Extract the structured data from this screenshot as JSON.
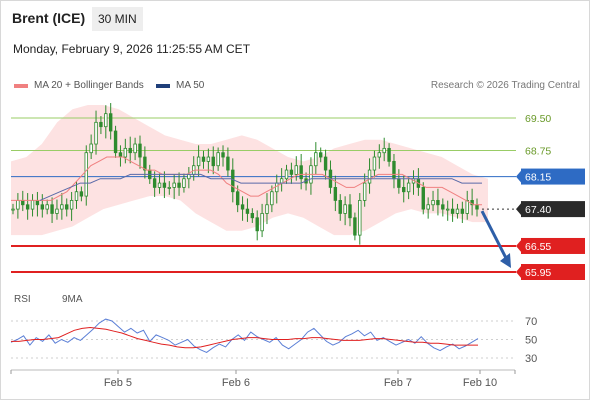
{
  "header": {
    "instrument": "Brent (ICE)",
    "timeframe": "30 MIN",
    "timestamp": "Monday, February 9, 2026 11:25:55 AM CET"
  },
  "legend": {
    "ma20_label": "MA 20 + Bollinger Bands",
    "ma50_label": "MA 50",
    "credit": "Research © 2026 Trading Central"
  },
  "rsi_legend": {
    "rsi_label": "RSI",
    "ma9_label": "9MA"
  },
  "colors": {
    "ma20": "#f08080",
    "bollinger_fill": "#fde2e2",
    "ma50": "#5a6aa8",
    "resistance": "#99cc66",
    "pivot": "#2e6bc4",
    "support": "#e02020",
    "candle": "#2e8b2e",
    "arrow": "#2e5fa8",
    "rsi": "#5b7fd6",
    "rsi_ma": "#e02020"
  },
  "chart_data": [
    {
      "type": "candlestick",
      "title": "Brent (ICE)",
      "timeframe": "30 MIN",
      "ylim": [
        65.5,
        70.0
      ],
      "x_tick_labels": [
        "Feb 5",
        "Feb 6",
        "Feb 7",
        "Feb 10"
      ],
      "levels": [
        {
          "value": 69.5,
          "label": "69.50",
          "kind": "resistance"
        },
        {
          "value": 68.75,
          "label": "68.75",
          "kind": "resistance"
        },
        {
          "value": 68.15,
          "label": "68.15",
          "kind": "pivot"
        },
        {
          "value": 67.4,
          "label": "67.40",
          "kind": "last"
        },
        {
          "value": 66.55,
          "label": "66.55",
          "kind": "support"
        },
        {
          "value": 65.95,
          "label": "65.95",
          "kind": "support"
        }
      ],
      "close_series": [
        67.4,
        67.6,
        67.5,
        67.4,
        67.6,
        67.5,
        67.4,
        67.5,
        67.3,
        67.4,
        67.5,
        67.4,
        67.6,
        67.8,
        67.7,
        68.7,
        68.9,
        69.4,
        69.3,
        69.6,
        69.2,
        68.7,
        68.6,
        68.8,
        68.7,
        68.9,
        68.6,
        68.3,
        68.1,
        67.9,
        68.0,
        67.9,
        67.9,
        68.0,
        67.9,
        68.1,
        68.2,
        68.4,
        68.6,
        68.5,
        68.6,
        68.4,
        68.7,
        68.6,
        68.3,
        67.8,
        67.5,
        67.4,
        67.3,
        67.2,
        66.9,
        67.3,
        67.5,
        67.8,
        68.0,
        68.1,
        68.3,
        68.2,
        68.4,
        68.1,
        68.0,
        68.4,
        68.7,
        68.6,
        68.3,
        67.9,
        67.6,
        67.3,
        67.5,
        67.2,
        66.8,
        67.6,
        68.0,
        68.3,
        68.6,
        68.7,
        68.8,
        68.5,
        68.1,
        67.9,
        67.8,
        68.0,
        68.1,
        67.9,
        67.4,
        67.5,
        67.6,
        67.5,
        67.4,
        67.4,
        67.3,
        67.4,
        67.3,
        67.6,
        67.5,
        67.4
      ],
      "ma20_series": [
        67.6,
        67.6,
        67.6,
        67.6,
        67.6,
        67.6,
        67.7,
        67.8,
        68.0,
        68.2,
        68.4,
        68.5,
        68.6,
        68.6,
        68.6,
        68.5,
        68.4,
        68.3,
        68.3,
        68.2,
        68.2,
        68.2,
        68.2,
        68.3,
        68.3,
        68.3,
        68.2,
        68.0,
        67.9,
        67.8,
        67.7,
        67.7,
        67.8,
        67.9,
        68.0,
        68.1,
        68.2,
        68.2,
        68.2,
        68.2,
        68.1,
        68.0,
        67.9,
        67.9,
        68.0,
        68.1,
        68.2,
        68.2,
        68.2,
        68.2,
        68.1,
        68.0,
        67.9,
        67.9,
        67.9,
        67.8,
        67.7,
        67.6,
        67.5,
        67.5
      ],
      "ma50_series": [
        67.6,
        67.7,
        67.8,
        67.9,
        68.0,
        68.0,
        68.1,
        68.1,
        68.1,
        68.2,
        68.2,
        68.2,
        68.2,
        68.2,
        68.2,
        68.2,
        68.2,
        68.1,
        68.1,
        68.1,
        68.0,
        68.0,
        68.0,
        68.0,
        68.0,
        68.0,
        68.0,
        68.1,
        68.1,
        68.1,
        68.1,
        68.1,
        68.1,
        68.1,
        68.1,
        68.1,
        68.1,
        68.1,
        68.1,
        68.1,
        68.1,
        68.1,
        68.0,
        68.0,
        68.0
      ],
      "bb_upper": [
        68.5,
        68.6,
        68.9,
        69.4,
        69.7,
        69.8,
        69.8,
        69.7,
        69.5,
        69.3,
        69.1,
        69.0,
        68.9,
        68.9,
        69.0,
        69.1,
        69.0,
        68.8,
        68.6,
        68.5,
        68.6,
        68.8,
        68.9,
        69.0,
        69.0,
        68.9,
        68.8,
        68.7,
        68.6,
        68.4,
        68.2,
        68.1
      ],
      "bb_lower": [
        66.8,
        66.8,
        66.8,
        66.9,
        67.0,
        67.2,
        67.4,
        67.5,
        67.6,
        67.7,
        67.7,
        67.6,
        67.3,
        67.1,
        66.9,
        66.9,
        67.0,
        67.2,
        67.3,
        67.2,
        67.0,
        66.8,
        66.8,
        66.9,
        67.1,
        67.3,
        67.4,
        67.3,
        67.3,
        67.2,
        67.1,
        67.1
      ]
    },
    {
      "type": "line",
      "title": "RSI",
      "ylim": [
        20,
        80
      ],
      "y_ticks": [
        70,
        50,
        30
      ],
      "series": [
        {
          "name": "RSI",
          "values": [
            47,
            50,
            54,
            44,
            52,
            48,
            55,
            46,
            50,
            47,
            52,
            49,
            55,
            61,
            68,
            72,
            70,
            64,
            58,
            62,
            57,
            60,
            48,
            55,
            52,
            49,
            44,
            47,
            50,
            43,
            39,
            36,
            41,
            45,
            42,
            50,
            55,
            49,
            58,
            53,
            50,
            47,
            52,
            44,
            40,
            45,
            50,
            58,
            62,
            55,
            48,
            44,
            47,
            53,
            56,
            60,
            54,
            58,
            49,
            52,
            48,
            44,
            47,
            50,
            46,
            53,
            46,
            41,
            38,
            42,
            45,
            40,
            43,
            47,
            51
          ]
        },
        {
          "name": "9MA",
          "values": [
            48,
            48,
            49,
            50,
            50,
            51,
            52,
            56,
            60,
            62,
            63,
            62,
            61,
            59,
            57,
            54,
            51,
            49,
            47,
            45,
            44,
            42,
            41,
            41,
            42,
            44,
            46,
            48,
            50,
            51,
            52,
            52,
            51,
            50,
            50,
            50,
            51,
            51,
            52,
            52,
            51,
            50,
            49,
            49,
            49,
            50,
            51,
            51,
            50,
            49,
            48,
            47,
            47,
            46,
            46,
            45,
            44,
            44,
            44,
            44
          ]
        }
      ]
    }
  ]
}
